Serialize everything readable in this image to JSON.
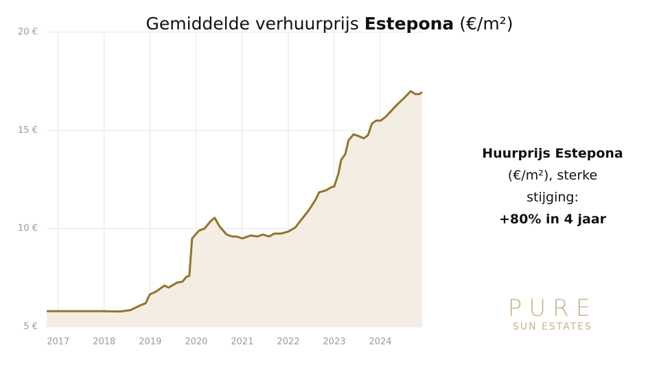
{
  "chart_data": {
    "type": "line",
    "title": [
      "Gemiddelde verhuurprijs",
      "Estepona",
      "(€/m²)"
    ],
    "x": [
      2016.75,
      2017.97,
      2018.34,
      2018.57,
      2018.79,
      2018.9,
      2018.99,
      2019.13,
      2019.31,
      2019.4,
      2019.58,
      2019.7,
      2019.79,
      2019.85,
      2019.91,
      2020.06,
      2020.18,
      2020.3,
      2020.4,
      2020.51,
      2020.66,
      2020.78,
      2020.88,
      2021.0,
      2021.18,
      2021.33,
      2021.45,
      2021.58,
      2021.7,
      2021.85,
      2022.0,
      2022.15,
      2022.3,
      2022.45,
      2022.6,
      2022.67,
      2022.82,
      2022.93,
      2023.0,
      2023.09,
      2023.15,
      2023.24,
      2023.31,
      2023.42,
      2023.54,
      2023.64,
      2023.73,
      2023.82,
      2023.91,
      2024.01,
      2024.12,
      2024.24,
      2024.36,
      2024.45,
      2024.54,
      2024.66,
      2024.76,
      2024.85,
      2024.91
    ],
    "series": [
      {
        "color": "#93732a",
        "fill": "#f4ede4",
        "values": [
          5.8,
          5.8,
          5.78,
          5.85,
          6.1,
          6.2,
          6.65,
          6.8,
          7.1,
          7.0,
          7.25,
          7.3,
          7.55,
          7.6,
          9.5,
          9.9,
          10.0,
          10.35,
          10.55,
          10.1,
          9.7,
          9.6,
          9.6,
          9.5,
          9.65,
          9.6,
          9.7,
          9.6,
          9.75,
          9.75,
          9.85,
          10.05,
          10.5,
          10.95,
          11.5,
          11.85,
          11.95,
          12.1,
          12.15,
          12.8,
          13.5,
          13.8,
          14.5,
          14.8,
          14.7,
          14.6,
          14.75,
          15.35,
          15.5,
          15.5,
          15.7,
          16.0,
          16.3,
          16.5,
          16.7,
          17.0,
          16.85,
          16.85,
          16.95
        ]
      }
    ],
    "xlim": [
      2016.75,
      2024.91
    ],
    "xticks": [
      2017,
      2018,
      2019,
      2020,
      2021,
      2022,
      2023,
      2024
    ],
    "ylim": [
      5,
      20
    ],
    "yticks": [
      {
        "value": 5,
        "label": "5 €"
      },
      {
        "value": 10,
        "label": "10 €"
      },
      {
        "value": 15,
        "label": "15 €"
      },
      {
        "value": 20,
        "label": "20 €"
      }
    ],
    "grid": true,
    "annotation": [
      "Huurprijs Estepona",
      "(€/m²), sterke",
      "stijging:",
      "+80% in 4 jaar"
    ]
  },
  "logo": {
    "line1": "PURE",
    "line2": "SUN ESTATES"
  }
}
